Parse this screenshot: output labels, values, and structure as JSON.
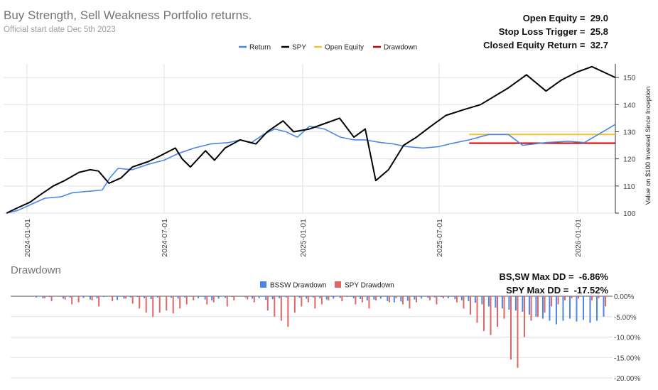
{
  "main_title": "Buy Strength, Sell Weakness Portfolio returns.",
  "subtitle": "Official start date Dec 5th 2023",
  "stats": [
    {
      "label": "Open Equity =",
      "value": "29.0"
    },
    {
      "label": "Stop Loss Trigger =",
      "value": "25.8"
    },
    {
      "label": "Closed Equity Return =",
      "value": "32.7"
    }
  ],
  "dd_title": "Drawdown",
  "dd_stats": [
    {
      "label": "BS,SW Max DD =",
      "value": "-6.86%"
    },
    {
      "label": "SPY Max DD =",
      "value": "-17.52%"
    }
  ],
  "colors": {
    "return": "#4a86e8",
    "spy": "#000000",
    "open_equity": "#f1c232",
    "drawdown": "#cc0000",
    "bssw_dd": "#4a86e8",
    "spy_dd": "#e06666",
    "grid": "#e0e0e0"
  },
  "chart_data": [
    {
      "type": "line",
      "title": "Buy Strength, Sell Weakness Portfolio returns.",
      "ylabel": "Value on $100 Invested Since Inception",
      "ylim": [
        100,
        155
      ],
      "yticks": [
        100,
        110,
        120,
        130,
        140,
        150
      ],
      "xlim": [
        "2023-12-01",
        "2026-02-20"
      ],
      "xticks": [
        "2024-01-01",
        "2024-07-01",
        "2025-01-01",
        "2025-07-01",
        "2026-01-01"
      ],
      "legend": [
        "Return",
        "SPY",
        "Open Equity",
        "Drawdown"
      ],
      "series": [
        {
          "name": "Return",
          "points": [
            [
              "2023-12-05",
              100
            ],
            [
              "2023-12-20",
              101
            ],
            [
              "2024-01-05",
              103
            ],
            [
              "2024-01-25",
              105.5
            ],
            [
              "2024-02-15",
              106
            ],
            [
              "2024-03-01",
              107.5
            ],
            [
              "2024-03-20",
              108
            ],
            [
              "2024-04-10",
              108.5
            ],
            [
              "2024-04-20",
              113
            ],
            [
              "2024-05-01",
              116.5
            ],
            [
              "2024-05-20",
              116
            ],
            [
              "2024-06-10",
              118
            ],
            [
              "2024-07-01",
              119.5
            ],
            [
              "2024-07-20",
              122
            ],
            [
              "2024-08-10",
              124
            ],
            [
              "2024-09-01",
              125.5
            ],
            [
              "2024-09-25",
              126
            ],
            [
              "2024-10-10",
              127
            ],
            [
              "2024-10-25",
              126
            ],
            [
              "2024-11-10",
              129
            ],
            [
              "2024-11-25",
              131
            ],
            [
              "2024-12-10",
              130
            ],
            [
              "2024-12-25",
              128
            ],
            [
              "2025-01-10",
              132
            ],
            [
              "2025-01-30",
              131
            ],
            [
              "2025-02-20",
              128
            ],
            [
              "2025-03-10",
              127
            ],
            [
              "2025-03-25",
              127
            ],
            [
              "2025-04-15",
              126
            ],
            [
              "2025-05-01",
              125.5
            ],
            [
              "2025-05-20",
              124.5
            ],
            [
              "2025-06-10",
              124
            ],
            [
              "2025-06-30",
              124.5
            ],
            [
              "2025-07-15",
              125.5
            ],
            [
              "2025-08-10",
              127
            ],
            [
              "2025-09-05",
              129
            ],
            [
              "2025-10-01",
              129
            ],
            [
              "2025-10-20",
              125
            ],
            [
              "2025-11-20",
              126
            ],
            [
              "2025-12-20",
              126.5
            ],
            [
              "2026-01-10",
              126
            ],
            [
              "2026-02-20",
              132.7
            ]
          ]
        },
        {
          "name": "SPY",
          "points": [
            [
              "2023-12-05",
              100
            ],
            [
              "2023-12-20",
              102
            ],
            [
              "2024-01-05",
              104
            ],
            [
              "2024-01-20",
              107
            ],
            [
              "2024-02-05",
              110
            ],
            [
              "2024-02-20",
              112
            ],
            [
              "2024-03-10",
              115
            ],
            [
              "2024-03-25",
              116
            ],
            [
              "2024-04-05",
              115.5
            ],
            [
              "2024-04-19",
              111
            ],
            [
              "2024-05-05",
              113
            ],
            [
              "2024-05-20",
              117
            ],
            [
              "2024-06-10",
              119
            ],
            [
              "2024-06-25",
              121
            ],
            [
              "2024-07-16",
              124
            ],
            [
              "2024-07-25",
              120
            ],
            [
              "2024-08-05",
              117
            ],
            [
              "2024-08-25",
              123
            ],
            [
              "2024-09-06",
              119.5
            ],
            [
              "2024-09-20",
              124
            ],
            [
              "2024-10-10",
              127
            ],
            [
              "2024-10-31",
              125.5
            ],
            [
              "2024-11-15",
              130
            ],
            [
              "2024-12-06",
              134
            ],
            [
              "2024-12-20",
              130
            ],
            [
              "2025-01-10",
              131
            ],
            [
              "2025-01-30",
              133
            ],
            [
              "2025-02-19",
              135
            ],
            [
              "2025-03-10",
              128
            ],
            [
              "2025-03-25",
              131
            ],
            [
              "2025-04-08",
              112
            ],
            [
              "2025-04-25",
              116
            ],
            [
              "2025-05-15",
              125
            ],
            [
              "2025-06-01",
              128
            ],
            [
              "2025-06-20",
              132
            ],
            [
              "2025-07-10",
              136
            ],
            [
              "2025-08-01",
              138
            ],
            [
              "2025-08-25",
              140
            ],
            [
              "2025-09-30",
              146
            ],
            [
              "2025-10-25",
              151
            ],
            [
              "2025-11-20",
              145
            ],
            [
              "2025-12-10",
              149
            ],
            [
              "2025-12-31",
              152
            ],
            [
              "2026-01-20",
              154
            ],
            [
              "2026-02-20",
              150
            ]
          ]
        }
      ],
      "hlines": [
        {
          "name": "Open Equity",
          "value": 129,
          "from": "2025-08-10",
          "to": "2026-02-20"
        },
        {
          "name": "Drawdown",
          "value": 125.8,
          "from": "2025-08-10",
          "to": "2026-02-20"
        }
      ]
    },
    {
      "type": "bar",
      "title": "Drawdown",
      "ylim": [
        -20,
        0
      ],
      "yticks": [
        "0.00%",
        "-5.00%",
        "-10.00%",
        "-15.00%",
        "-20.00%"
      ],
      "yvalues": [
        0,
        -5,
        -10,
        -15,
        -20
      ],
      "legend": [
        "BSSW Drawdown",
        "SPY Drawdown"
      ],
      "series": [
        {
          "name": "BSSW Drawdown",
          "values": [
            -0.3,
            -0.5,
            -0.2,
            0,
            -0.6,
            -0.3,
            0,
            -0.4,
            -0.8,
            -0.5,
            -0.2,
            0,
            -0.9,
            -0.6,
            -0.3,
            -0.2,
            -0.5,
            -0.7,
            -0.3,
            0,
            -0.4,
            -0.6,
            -0.3,
            0,
            -0.5,
            -0.8,
            -1.0,
            -0.6,
            -0.4,
            -0.2,
            0,
            -0.3,
            -0.6,
            -0.5,
            -0.9,
            -0.7,
            -0.5,
            -0.3,
            0,
            -0.4,
            -0.6,
            -0.3,
            -0.5,
            -0.8,
            -0.6,
            -0.4,
            -0.2,
            -0.5,
            -0.7,
            -1.0,
            -0.8,
            -0.6,
            -1.2,
            -1.5,
            -1.3,
            -1.1,
            -0.8,
            -0.6,
            -0.4,
            -0.3,
            -0.2,
            -0.5,
            -0.7,
            -1.0,
            -1.2,
            -1.6,
            -2.0,
            -2.5,
            -2.8,
            -3.0,
            -3.3,
            -3.5,
            -3.8,
            -4.5,
            -5.0,
            -5.5,
            -6.0,
            -6.86,
            -6.0,
            -5.5,
            -6.2,
            -5.8,
            -6.5,
            -6.0,
            -5.0
          ]
        },
        {
          "name": "SPY Drawdown",
          "values": [
            0,
            -0.5,
            -1.2,
            0,
            -0.8,
            -2.0,
            -1.5,
            0,
            -1.0,
            -2.5,
            0,
            -1.2,
            0,
            -0.6,
            -1.8,
            -3.0,
            -4.0,
            -5.0,
            -4.0,
            -3.5,
            -4.2,
            -3.0,
            -2.0,
            -1.0,
            0,
            -2.0,
            -1.5,
            0,
            -2.5,
            -1.0,
            0,
            -0.8,
            -1.5,
            0,
            -3.5,
            -5.0,
            -6.0,
            -7.5,
            -4.0,
            -2.5,
            -1.5,
            -3.0,
            -2.0,
            -1.0,
            0,
            -1.2,
            0,
            -2.0,
            -1.5,
            -3.0,
            -1.0,
            0,
            -1.5,
            -0.5,
            -2.0,
            -3.0,
            -1.5,
            0,
            -1.0,
            -2.0,
            -0.5,
            0,
            -1.5,
            -3.0,
            -4.5,
            -6.5,
            -8.5,
            -9.5,
            -7.5,
            -5.5,
            -15.5,
            -17.52,
            -10.0,
            -6.0,
            -5.0,
            -4.0,
            -2.5,
            -2.0,
            -1.0,
            -0.5,
            -0.6,
            0,
            -1.0,
            -0.5,
            -2.5
          ]
        }
      ]
    }
  ]
}
